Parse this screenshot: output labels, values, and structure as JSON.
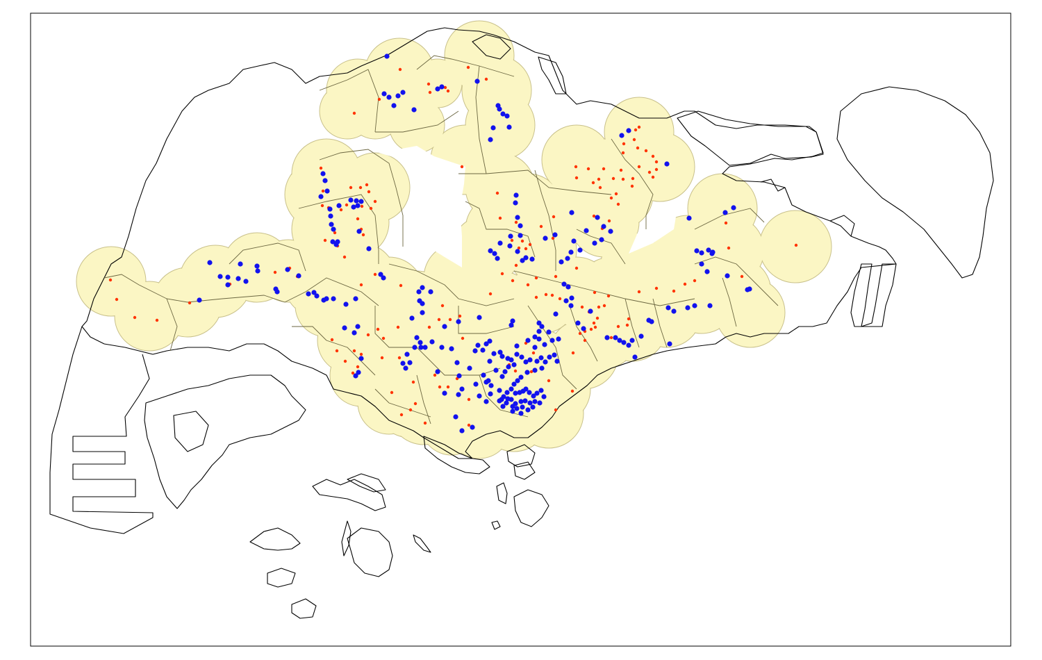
{
  "map": {
    "colors": {
      "background": "#ffffff",
      "frame": "#000000",
      "coastline": "#000000",
      "buffer_fill": "#fbf6c4",
      "buffer_stroke": "#c8c08a",
      "district_line": "#6b6640",
      "red_marker": "#ff3300",
      "blue_marker": "#1212ee"
    },
    "layers": [
      "coastline",
      "service-buffers",
      "district-boundaries",
      "red-point-markers",
      "blue-point-markers"
    ]
  }
}
